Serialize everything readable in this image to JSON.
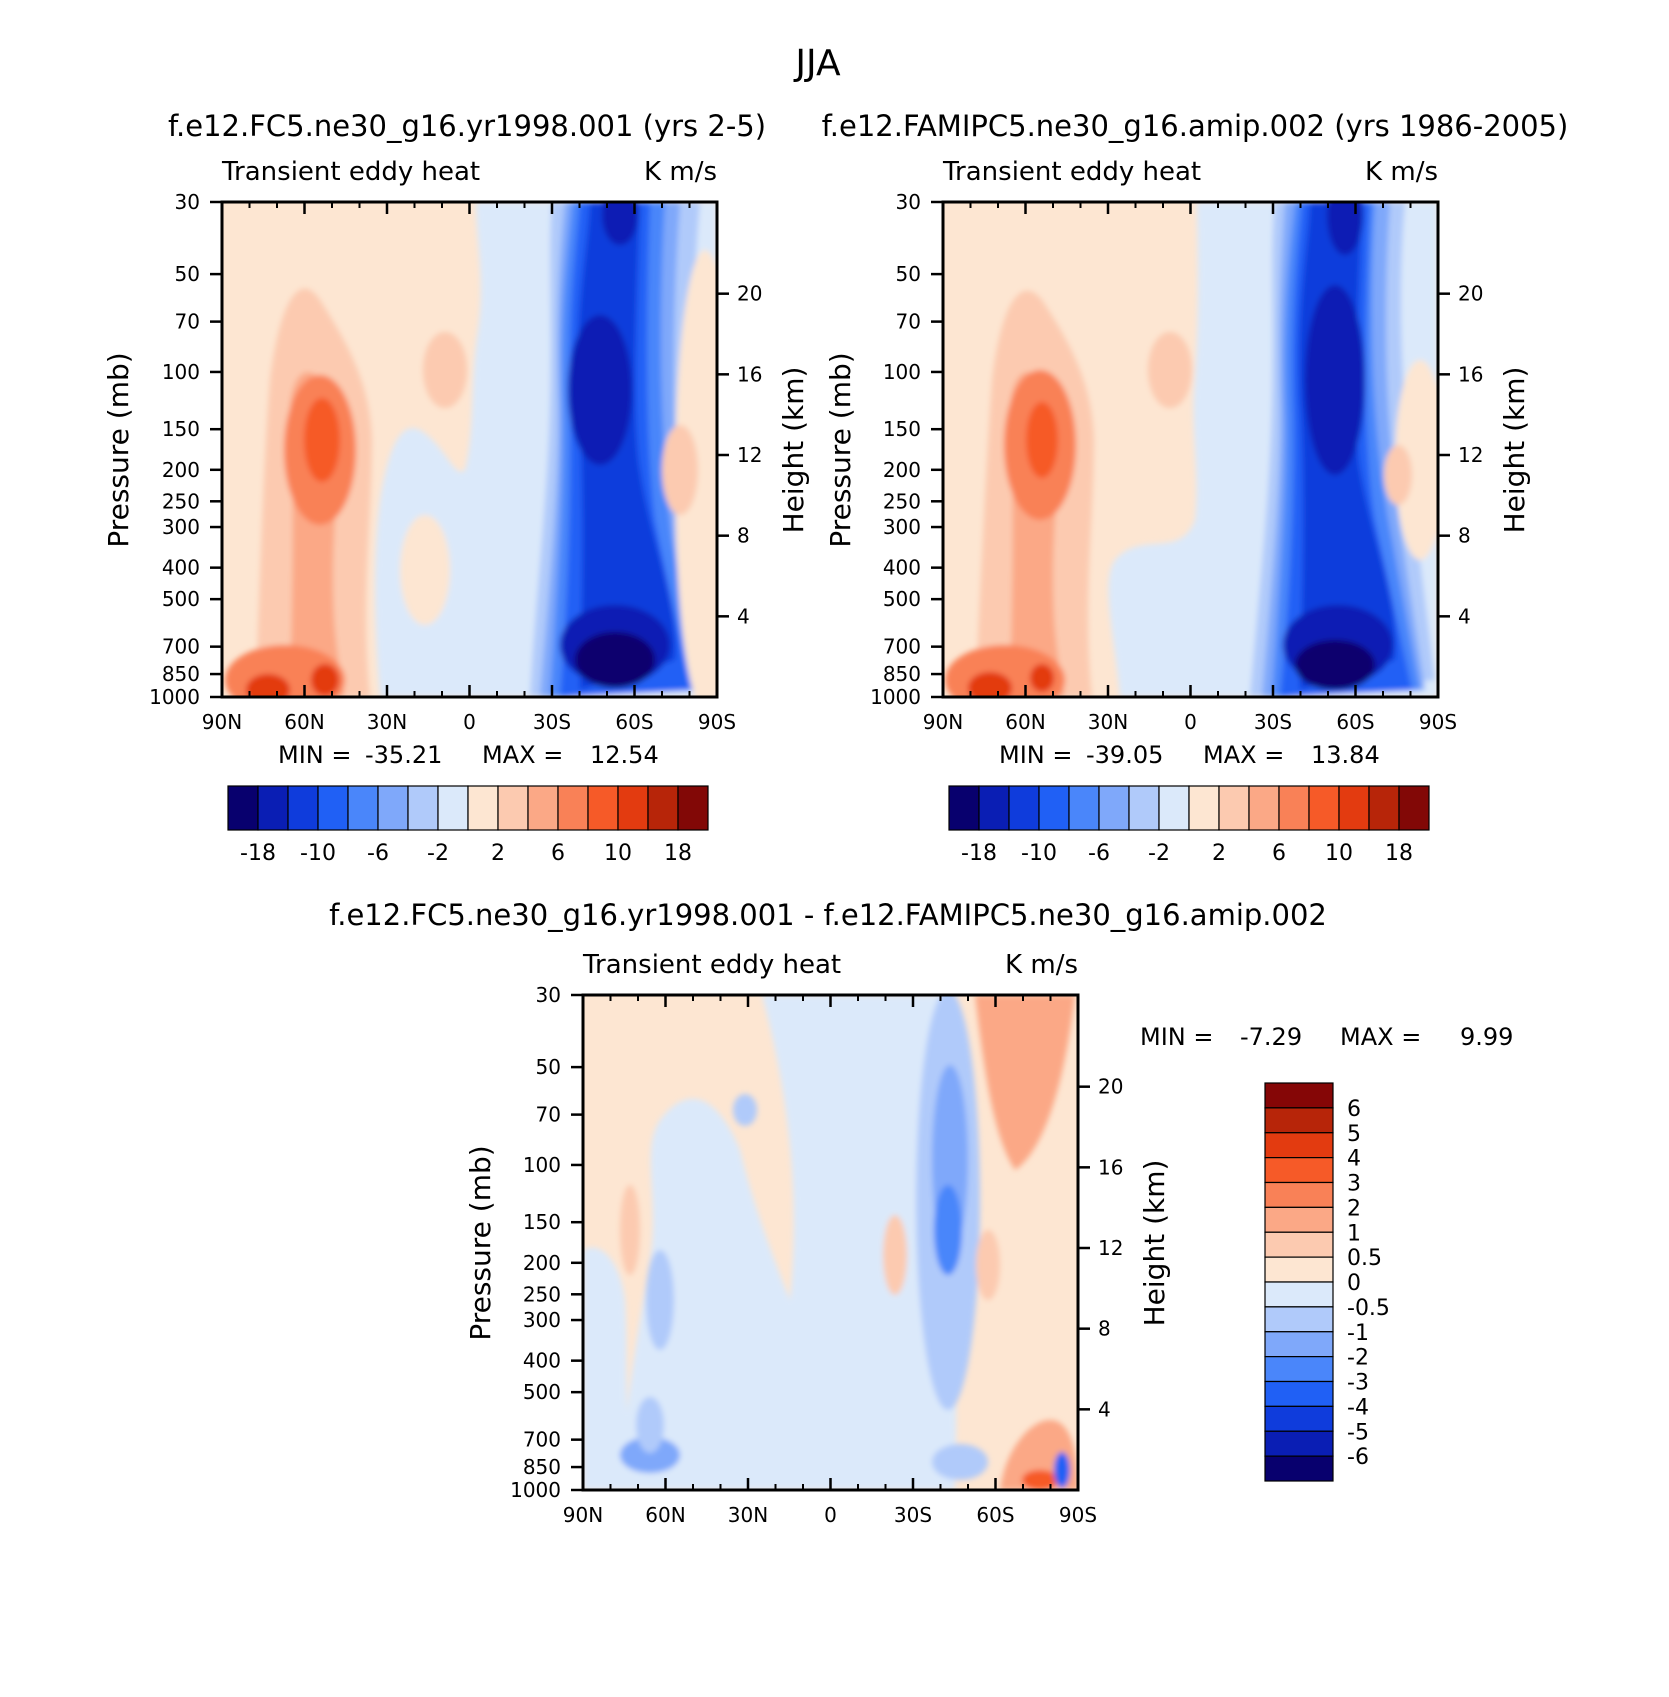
{
  "figure": {
    "title": "JJA"
  },
  "chart_data": [
    {
      "type": "heatmap",
      "id": "panel-model",
      "title": "f.e12.FC5.ne30_g16.yr1998.001 (yrs 2-5)",
      "subtitle_left": "Transient eddy heat",
      "subtitle_right": "K m/s",
      "xlabel": "",
      "ylabel": "Pressure (mb)",
      "ylabel_right": "Height (km)",
      "x_ticks": [
        "90N",
        "60N",
        "30N",
        "0",
        "30S",
        "60S",
        "90S"
      ],
      "y_ticks": [
        "30",
        "50",
        "70",
        "100",
        "150",
        "200",
        "250",
        "300",
        "400",
        "500",
        "700",
        "850",
        "1000"
      ],
      "y_ticks_right": [
        "20",
        "16",
        "12",
        "8",
        "4"
      ],
      "min_label": "MIN =",
      "min": "-35.21",
      "max_label": "MAX =",
      "max": "12.54",
      "colorbar_labels": [
        "-18",
        "-10",
        "-6",
        "-2",
        "2",
        "6",
        "10",
        "18"
      ],
      "colorbar_orientation": "horizontal"
    },
    {
      "type": "heatmap",
      "id": "panel-control",
      "title": "f.e12.FAMIPC5.ne30_g16.amip.002 (yrs 1986-2005)",
      "subtitle_left": "Transient eddy heat",
      "subtitle_right": "K m/s",
      "xlabel": "",
      "ylabel": "Pressure (mb)",
      "ylabel_right": "Height (km)",
      "x_ticks": [
        "90N",
        "60N",
        "30N",
        "0",
        "30S",
        "60S",
        "90S"
      ],
      "y_ticks": [
        "30",
        "50",
        "70",
        "100",
        "150",
        "200",
        "250",
        "300",
        "400",
        "500",
        "700",
        "850",
        "1000"
      ],
      "y_ticks_right": [
        "20",
        "16",
        "12",
        "8",
        "4"
      ],
      "min_label": "MIN =",
      "min": "-39.05",
      "max_label": "MAX =",
      "max": "13.84",
      "colorbar_labels": [
        "-18",
        "-10",
        "-6",
        "-2",
        "2",
        "6",
        "10",
        "18"
      ],
      "colorbar_orientation": "horizontal"
    },
    {
      "type": "heatmap",
      "id": "panel-difference",
      "title": "f.e12.FC5.ne30_g16.yr1998.001 - f.e12.FAMIPC5.ne30_g16.amip.002",
      "subtitle_left": "Transient eddy heat",
      "subtitle_right": "K m/s",
      "xlabel": "",
      "ylabel": "Pressure (mb)",
      "ylabel_right": "Height (km)",
      "x_ticks": [
        "90N",
        "60N",
        "30N",
        "0",
        "30S",
        "60S",
        "90S"
      ],
      "y_ticks": [
        "30",
        "50",
        "70",
        "100",
        "150",
        "200",
        "250",
        "300",
        "400",
        "500",
        "700",
        "850",
        "1000"
      ],
      "y_ticks_right": [
        "20",
        "16",
        "12",
        "8",
        "4"
      ],
      "min_label": "MIN =",
      "min": "-7.29",
      "max_label": "MAX =",
      "max": "9.99",
      "colorbar_labels": [
        "6",
        "5",
        "4",
        "3",
        "2",
        "1",
        "0.5",
        "0",
        "-0.5",
        "-1",
        "-2",
        "-3",
        "-4",
        "-5",
        "-6"
      ],
      "colorbar_orientation": "vertical"
    }
  ],
  "colors": {
    "main_scale": [
      "#08006e",
      "#0a1eb4",
      "#0f3cdc",
      "#2060f5",
      "#4a86fa",
      "#7fa8fa",
      "#b0cafa",
      "#dbe9fa",
      "#fde6d2",
      "#fccab0",
      "#fba886",
      "#f98157",
      "#f65a28",
      "#e33b10",
      "#b72509",
      "#820806"
    ],
    "diff_scale": [
      "#850606",
      "#b72509",
      "#e33b10",
      "#f65a28",
      "#f98157",
      "#fba886",
      "#fccab0",
      "#fde6d2",
      "#dbe9fa",
      "#b0cafa",
      "#7fa8fa",
      "#4a86fa",
      "#2060f5",
      "#0f3cdc",
      "#0a1eb4",
      "#08006e"
    ]
  }
}
